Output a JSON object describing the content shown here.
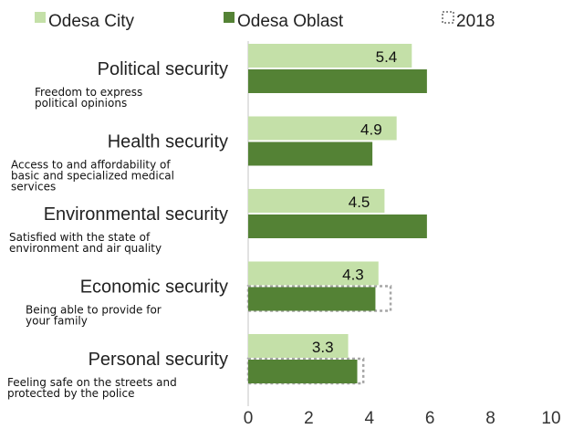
{
  "chart_data": {
    "type": "bar",
    "orientation": "horizontal",
    "categories": [
      "Political security",
      "Health security",
      "Environmental security",
      "Economic security",
      "Personal security"
    ],
    "descriptions": [
      [
        "Freedom to express",
        "political opinions"
      ],
      [
        "Access to and affordability of",
        "basic and specialized medical",
        "services"
      ],
      [
        "Satisfied with the state of",
        "environment and air quality"
      ],
      [
        "Being able to provide for",
        "your family"
      ],
      [
        "Feeling safe on the streets and",
        "protected by the police"
      ]
    ],
    "series": [
      {
        "name": "Odesa City",
        "color": "#c4e0a8",
        "values": [
          5.4,
          4.9,
          4.5,
          4.3,
          3.3
        ],
        "data_labels": [
          "5.4",
          "4.9",
          "4.5",
          "4.3",
          "3.3"
        ]
      },
      {
        "name": "Odesa Oblast",
        "color": "#548235",
        "values": [
          5.9,
          4.1,
          5.9,
          4.2,
          3.6
        ]
      },
      {
        "name": "2018",
        "style": "dotted-outline",
        "values": [
          null,
          null,
          null,
          4.7,
          3.8
        ]
      }
    ],
    "xlim": [
      0,
      10
    ],
    "xticks": [
      "0",
      "2",
      "4",
      "6",
      "8",
      "10"
    ],
    "grid": false,
    "legend_position": "top"
  }
}
